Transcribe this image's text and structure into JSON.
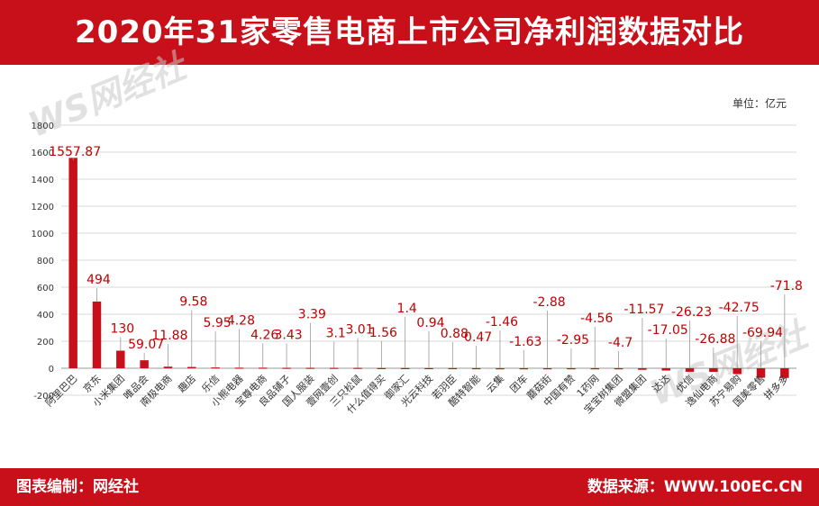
{
  "header": {
    "title": "2020年31家零售电商上市公司净利润数据对比"
  },
  "footer": {
    "left": "图表编制：网经社",
    "right": "数据来源：WWW.100EC.CN"
  },
  "unit_label": "单位：亿元",
  "watermark": {
    "text": "WS网经社"
  },
  "colors": {
    "brand": "#c8101a",
    "bar": "#c8101a",
    "label": "#c00000",
    "grid": "#d9d9d9"
  },
  "chart_data": {
    "type": "bar",
    "title": "2020年31家零售电商上市公司净利润数据对比",
    "unit": "亿元",
    "categories": [
      "阿里巴巴",
      "京东",
      "小米集团",
      "唯品会",
      "南极电商",
      "趣店",
      "乐信",
      "小熊电器",
      "宝尊电商",
      "良品铺子",
      "国人服装",
      "壹网壹创",
      "三只松鼠",
      "什么值得买",
      "御家汇",
      "光云科技",
      "若羽臣",
      "酷特智能",
      "云集",
      "团车",
      "蘑菇街",
      "中国有赞",
      "1药网",
      "宝宝树集团",
      "微盟集团",
      "达达",
      "优信",
      "逸仙电商",
      "苏宁易购",
      "国美零售",
      "拼多多"
    ],
    "values": [
      1557.87,
      494,
      130,
      59.07,
      11.88,
      9.58,
      5.95,
      4.28,
      4.26,
      3.43,
      3.39,
      3.1,
      3.01,
      1.56,
      1.4,
      0.94,
      0.88,
      0.47,
      -1.46,
      -1.63,
      -2.88,
      -2.95,
      -4.56,
      -4.7,
      -11.57,
      -17.05,
      -26.23,
      -26.88,
      -42.75,
      -69.94,
      -71.8
    ],
    "data_labels": [
      "1557.87",
      "494",
      "130",
      "59.07",
      "11.88",
      "9.58",
      "5.95",
      "4.28",
      "4.26",
      "3.43",
      "3.39",
      "3.1",
      "3.01",
      "1.56",
      "1.4",
      "0.94",
      "0.88",
      "0.47",
      "-1.46",
      "-1.63",
      "-2.88",
      "-2.95",
      "-4.56",
      "-4.7",
      "-11.57",
      "-17.05",
      "-26.23",
      "-26.88",
      "-42.75",
      "-69.94",
      "-71.8"
    ],
    "ylim": [
      -200,
      1800
    ],
    "yticks": [
      -200,
      0,
      200,
      400,
      600,
      800,
      1000,
      1200,
      1400,
      1600,
      1800
    ],
    "grid": true,
    "legend": "none",
    "xlabel": "",
    "ylabel": ""
  }
}
